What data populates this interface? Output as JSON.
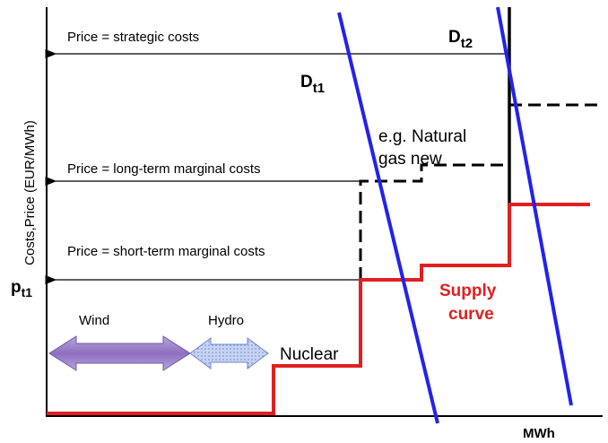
{
  "axes": {
    "y_label": "Costs,Price (EUR/MWh)",
    "x_label": "MWh"
  },
  "price_lines": [
    {
      "label": "Price  = strategic costs"
    },
    {
      "label": "Price  = long-term marginal costs"
    },
    {
      "label": "Price  = short-term marginal costs"
    }
  ],
  "price_marker": {
    "main": "p",
    "sub": "t1"
  },
  "demand": [
    {
      "main": "D",
      "sub": "t1"
    },
    {
      "main": "D",
      "sub": "t2"
    }
  ],
  "technologies": {
    "wind": "Wind",
    "hydro": "Hydro",
    "nuclear": "Nuclear",
    "gas": [
      "e.g. Natural",
      "gas new"
    ]
  },
  "supply_label": [
    "Supply",
    "curve"
  ]
}
